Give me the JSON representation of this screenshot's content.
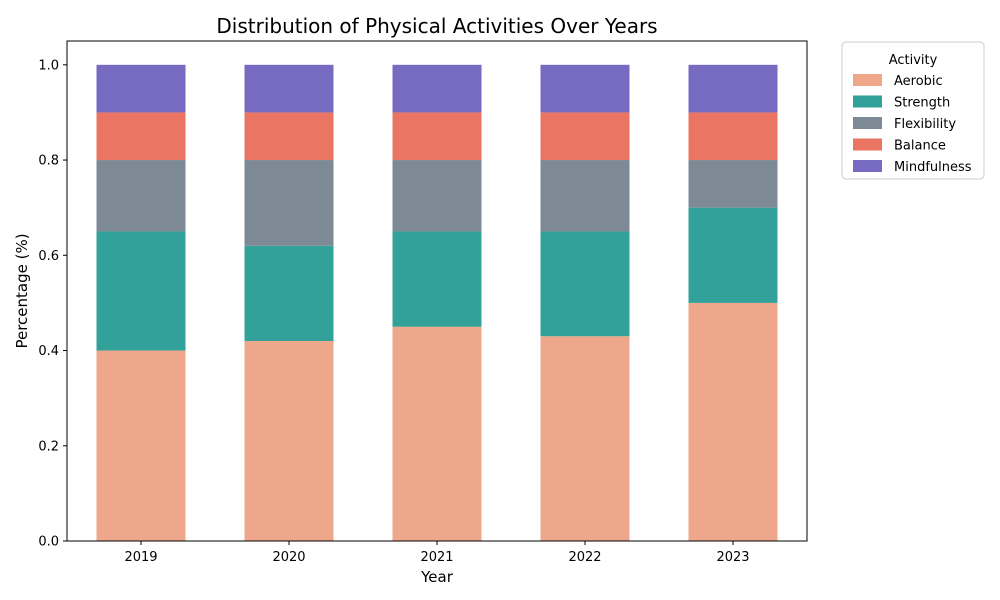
{
  "chart_data": {
    "type": "bar",
    "stacked": true,
    "title": "Distribution of Physical Activities Over Years",
    "xlabel": "Year",
    "ylabel": "Percentage (%)",
    "categories": [
      "2019",
      "2020",
      "2021",
      "2022",
      "2023"
    ],
    "ylim": [
      0,
      1.05
    ],
    "yticks": [
      0.0,
      0.2,
      0.4,
      0.6,
      0.8,
      1.0
    ],
    "ytick_labels": [
      "0.0",
      "0.2",
      "0.4",
      "0.6",
      "0.8",
      "1.0"
    ],
    "grid": false,
    "legend": {
      "title": "Activity",
      "placement": "outside-top-right"
    },
    "series": [
      {
        "name": "Aerobic",
        "color": "#EEA78A",
        "values": [
          0.4,
          0.42,
          0.45,
          0.43,
          0.5
        ]
      },
      {
        "name": "Strength",
        "color": "#31A19A",
        "values": [
          0.25,
          0.2,
          0.2,
          0.22,
          0.2
        ]
      },
      {
        "name": "Flexibility",
        "color": "#7D8A95",
        "values": [
          0.15,
          0.18,
          0.15,
          0.15,
          0.1
        ]
      },
      {
        "name": "Balance",
        "color": "#EA7562",
        "values": [
          0.1,
          0.1,
          0.1,
          0.1,
          0.1
        ]
      },
      {
        "name": "Mindfulness",
        "color": "#776AC1",
        "values": [
          0.1,
          0.1,
          0.1,
          0.1,
          0.1
        ]
      }
    ]
  }
}
